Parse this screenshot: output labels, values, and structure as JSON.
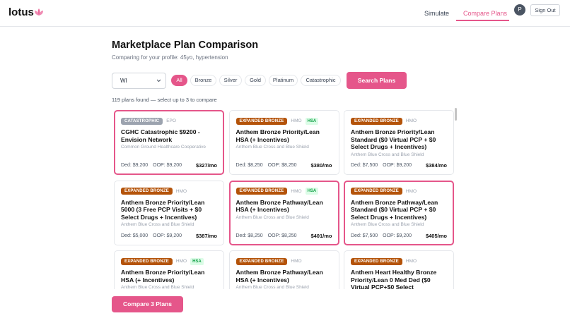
{
  "header": {
    "brand": "lotus",
    "nav": [
      "Simulate",
      "Compare Plans"
    ],
    "active_nav": 1,
    "avatar": "P",
    "sign_out": "Sign Out"
  },
  "page": {
    "title": "Marketplace Plan Comparison",
    "subtitle": "Comparing for your profile: 45yo, hypertension"
  },
  "filters": {
    "state": "WI",
    "pills": [
      "All",
      "Bronze",
      "Silver",
      "Gold",
      "Platinum",
      "Catastrophic"
    ],
    "active_pill": 0,
    "search": "Search Plans"
  },
  "count_text": "119 plans found — select up to 3 to compare",
  "cards": [
    {
      "badge": "CATASTROPHIC",
      "kind": "catastrophic",
      "type": "EPO",
      "name": "CGHC Catastrophic $9200 - Envision Network",
      "issuer": "Common Ground Healthcare Cooperative",
      "ded": "Ded: $9,200",
      "oop": "OOP: $9,200",
      "price": "$327/mo",
      "selected": true
    },
    {
      "badge": "EXPANDED BRONZE",
      "kind": "bronze",
      "type": "HMO",
      "hsa": "HSA",
      "name": "Anthem Bronze Priority/Lean HSA (+ Incentives)",
      "issuer": "Anthem Blue Cross and Blue Shield",
      "ded": "Ded: $8,250",
      "oop": "OOP: $8,250",
      "price": "$380/mo",
      "selected": false
    },
    {
      "badge": "EXPANDED BRONZE",
      "kind": "bronze",
      "type": "HMO",
      "name": "Anthem Bronze Priority/Lean Standard ($0 Virtual PCP + $0 Select Drugs + Incentives)",
      "issuer": "Anthem Blue Cross and Blue Shield",
      "ded": "Ded: $7,500",
      "oop": "OOP: $9,200",
      "price": "$384/mo",
      "selected": false
    },
    {
      "badge": "EXPANDED BRONZE",
      "kind": "bronze",
      "type": "HMO",
      "name": "Anthem Bronze Priority/Lean 5000 (3 Free PCP Visits + $0 Select Drugs + Incentives)",
      "issuer": "Anthem Blue Cross and Blue Shield",
      "ded": "Ded: $5,000",
      "oop": "OOP: $9,200",
      "price": "$387/mo",
      "selected": false
    },
    {
      "badge": "EXPANDED BRONZE",
      "kind": "bronze",
      "type": "HMO",
      "hsa": "HSA",
      "name": "Anthem Bronze Pathway/Lean HSA (+ Incentives)",
      "issuer": "Anthem Blue Cross and Blue Shield",
      "ded": "Ded: $8,250",
      "oop": "OOP: $8,250",
      "price": "$401/mo",
      "selected": true
    },
    {
      "badge": "EXPANDED BRONZE",
      "kind": "bronze",
      "type": "HMO",
      "name": "Anthem Bronze Pathway/Lean Standard ($0 Virtual PCP + $0 Select Drugs + Incentives)",
      "issuer": "Anthem Blue Cross and Blue Shield",
      "ded": "Ded: $7,500",
      "oop": "OOP: $9,200",
      "price": "$405/mo",
      "selected": true
    },
    {
      "badge": "EXPANDED BRONZE",
      "kind": "bronze",
      "type": "HMO",
      "hsa": "HSA",
      "name": "Anthem Bronze Priority/Lean HSA (+ Incentives)",
      "issuer": "Anthem Blue Cross and Blue Shield",
      "selected": false
    },
    {
      "badge": "EXPANDED BRONZE",
      "kind": "bronze",
      "type": "HMO",
      "name": "Anthem Bronze Pathway/Lean HSA (+ Incentives)",
      "issuer": "Anthem Blue Cross and Blue Shield",
      "selected": false
    },
    {
      "badge": "EXPANDED BRONZE",
      "kind": "bronze",
      "type": "HMO",
      "name": "Anthem Heart Healthy Bronze Priority/Lean 0 Med Ded ($0 Virtual PCP+$0 Select",
      "selected": false
    }
  ],
  "compare_button": "Compare 3 Plans"
}
